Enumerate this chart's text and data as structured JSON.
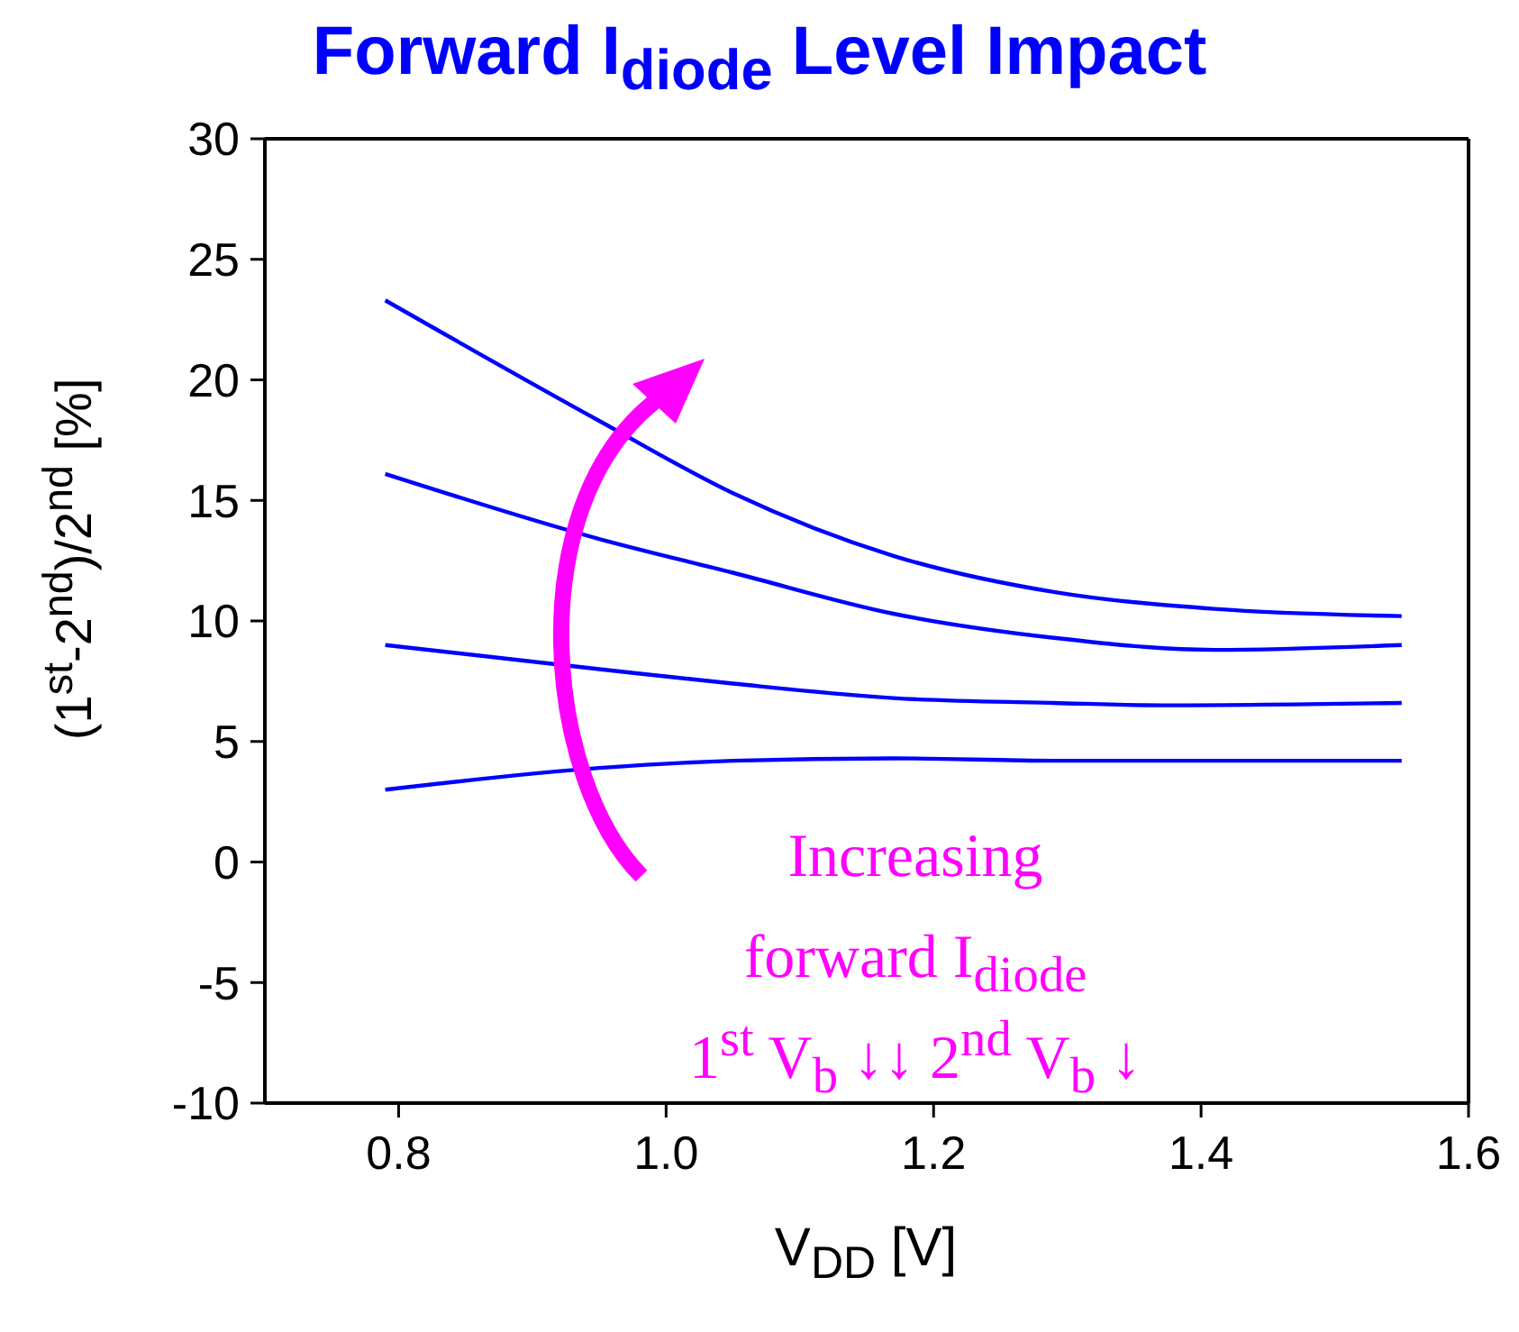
{
  "chart_data": {
    "type": "line",
    "title": "Forward I$_{diode}$ Level Impact",
    "xlabel": "V$_{DD}$ [V]",
    "ylabel": "(1$^{st}$-2$^{nd}$)/2$^{nd}$ [%]",
    "xlim": [
      0.7,
      1.6
    ],
    "xticks": [
      0.8,
      {
        "value": 1.0,
        "label": "1.0"
      },
      1.2,
      1.4,
      1.6
    ],
    "ylim": [
      -10,
      30
    ],
    "yticks": [
      -10,
      -5,
      0,
      5,
      10,
      15,
      20,
      25,
      30
    ],
    "marker": "none",
    "line_style": "solid",
    "annotations": [
      "Increasing",
      "forward I$_{diode}$",
      "1$^{st}$ V$_{b}$ ↓↓ 2$^{nd}$ V$_{b}$ ↓"
    ],
    "series": [
      {
        "color": "#0000ff",
        "x": [
          0.79,
          0.95,
          1.05,
          1.17,
          1.29,
          1.41,
          1.55
        ],
        "values": [
          23.3,
          18.3,
          15.3,
          12.7,
          11.2,
          10.5,
          10.2
        ]
      },
      {
        "color": "#0000ff",
        "x": [
          0.79,
          0.95,
          1.05,
          1.17,
          1.29,
          1.41,
          1.55
        ],
        "values": [
          16.1,
          13.4,
          12.0,
          10.3,
          9.3,
          8.8,
          9.0
        ]
      },
      {
        "color": "#0000ff",
        "x": [
          0.79,
          0.95,
          1.05,
          1.17,
          1.29,
          1.37,
          1.55
        ],
        "values": [
          9.0,
          8.0,
          7.4,
          6.8,
          6.6,
          6.5,
          6.6
        ]
      },
      {
        "color": "#0000ff",
        "x": [
          0.79,
          0.95,
          1.05,
          1.17,
          1.29,
          1.41,
          1.55
        ],
        "values": [
          3.0,
          3.9,
          4.2,
          4.3,
          4.2,
          4.2,
          4.2
        ]
      }
    ]
  }
}
